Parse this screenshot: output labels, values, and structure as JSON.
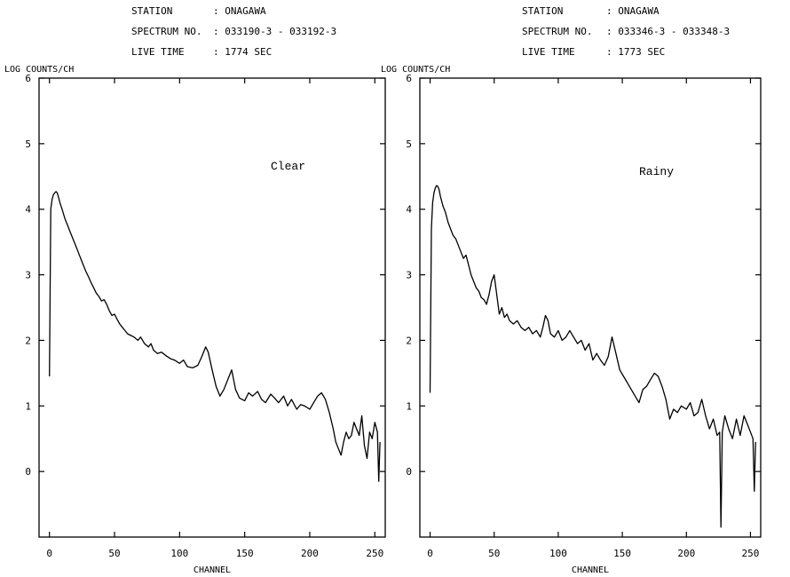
{
  "chart_data": [
    {
      "type": "line",
      "annotation": "Clear",
      "header": {
        "station_label": "STATION",
        "station_value": ": ONAGAWA",
        "spectrum_label": "SPECTRUM NO.",
        "spectrum_value": ": 033190-3 - 033192-3",
        "live_label": "LIVE TIME",
        "live_value": ":  1774 SEC"
      },
      "ylabel": "LOG COUNTS/CH",
      "xlabel": "CHANNEL",
      "xlim": [
        -8,
        258
      ],
      "ylim": [
        -1,
        6
      ],
      "xticks": [
        0,
        50,
        100,
        150,
        200,
        250
      ],
      "yticks": [
        0,
        1,
        2,
        3,
        4,
        5,
        6
      ],
      "series": [
        {
          "x": [
            0,
            1,
            2,
            3,
            4,
            5,
            6,
            7,
            8,
            10,
            12,
            14,
            16,
            18,
            20,
            22,
            24,
            26,
            28,
            30,
            32,
            34,
            36,
            38,
            40,
            42,
            44,
            46,
            48,
            50,
            52,
            54,
            56,
            58,
            60,
            62,
            65,
            68,
            70,
            73,
            76,
            78,
            80,
            83,
            86,
            90,
            93,
            96,
            100,
            103,
            106,
            110,
            114,
            117,
            120,
            122,
            125,
            128,
            131,
            134,
            137,
            140,
            143,
            146,
            150,
            153,
            156,
            160,
            163,
            166,
            170,
            173,
            176,
            180,
            183,
            186,
            190,
            193,
            196,
            200,
            203,
            206,
            209,
            212,
            215,
            218,
            220,
            222,
            224,
            226,
            228,
            230,
            232,
            234,
            236,
            238,
            240,
            242,
            244,
            246,
            248,
            250,
            252,
            253,
            254
          ],
          "y": [
            1.45,
            4.0,
            4.15,
            4.22,
            4.25,
            4.27,
            4.25,
            4.18,
            4.1,
            3.98,
            3.85,
            3.75,
            3.65,
            3.55,
            3.45,
            3.35,
            3.25,
            3.15,
            3.05,
            2.97,
            2.88,
            2.8,
            2.72,
            2.67,
            2.6,
            2.62,
            2.55,
            2.45,
            2.38,
            2.4,
            2.32,
            2.25,
            2.2,
            2.15,
            2.1,
            2.08,
            2.05,
            2.0,
            2.05,
            1.95,
            1.9,
            1.95,
            1.85,
            1.8,
            1.82,
            1.76,
            1.72,
            1.7,
            1.65,
            1.7,
            1.6,
            1.58,
            1.62,
            1.75,
            1.9,
            1.82,
            1.55,
            1.3,
            1.15,
            1.25,
            1.4,
            1.55,
            1.25,
            1.12,
            1.08,
            1.2,
            1.15,
            1.22,
            1.1,
            1.05,
            1.18,
            1.12,
            1.05,
            1.15,
            1.0,
            1.1,
            0.95,
            1.02,
            1.0,
            0.95,
            1.05,
            1.15,
            1.2,
            1.1,
            0.9,
            0.65,
            0.45,
            0.35,
            0.25,
            0.45,
            0.6,
            0.5,
            0.55,
            0.75,
            0.65,
            0.55,
            0.85,
            0.4,
            0.2,
            0.6,
            0.5,
            0.75,
            0.6,
            -0.15,
            0.45
          ]
        }
      ]
    },
    {
      "type": "line",
      "annotation": "Rainy",
      "header": {
        "station_label": "STATION",
        "station_value": ": ONAGAWA",
        "spectrum_label": "SPECTRUM NO.",
        "spectrum_value": ": 033346-3 - 033348-3",
        "live_label": "LIVE TIME",
        "live_value": ":  1773 SEC"
      },
      "ylabel": "LOG COUNTS/CH",
      "xlabel": "CHANNEL",
      "xlim": [
        -8,
        258
      ],
      "ylim": [
        -1,
        6
      ],
      "xticks": [
        0,
        50,
        100,
        150,
        200,
        250
      ],
      "yticks": [
        0,
        1,
        2,
        3,
        4,
        5,
        6
      ],
      "series": [
        {
          "x": [
            0,
            1,
            2,
            3,
            4,
            5,
            6,
            7,
            8,
            10,
            12,
            14,
            16,
            18,
            20,
            22,
            24,
            26,
            28,
            30,
            32,
            34,
            36,
            38,
            40,
            42,
            44,
            46,
            48,
            50,
            52,
            54,
            56,
            58,
            60,
            62,
            65,
            68,
            71,
            74,
            77,
            80,
            83,
            86,
            88,
            90,
            92,
            94,
            97,
            100,
            103,
            106,
            109,
            112,
            115,
            118,
            121,
            124,
            127,
            130,
            133,
            136,
            139,
            142,
            145,
            148,
            151,
            154,
            157,
            160,
            163,
            166,
            169,
            172,
            175,
            178,
            181,
            184,
            187,
            190,
            193,
            196,
            200,
            203,
            206,
            209,
            212,
            215,
            218,
            221,
            224,
            226,
            227,
            228,
            230,
            233,
            236,
            239,
            242,
            245,
            248,
            250,
            252,
            253,
            254
          ],
          "y": [
            1.2,
            3.7,
            4.1,
            4.25,
            4.32,
            4.36,
            4.35,
            4.3,
            4.2,
            4.05,
            3.95,
            3.8,
            3.7,
            3.6,
            3.55,
            3.45,
            3.35,
            3.25,
            3.3,
            3.15,
            3.0,
            2.9,
            2.8,
            2.75,
            2.65,
            2.62,
            2.55,
            2.7,
            2.9,
            3.0,
            2.7,
            2.4,
            2.5,
            2.35,
            2.4,
            2.3,
            2.25,
            2.3,
            2.2,
            2.15,
            2.2,
            2.1,
            2.15,
            2.05,
            2.2,
            2.38,
            2.3,
            2.1,
            2.05,
            2.15,
            2.0,
            2.05,
            2.15,
            2.05,
            1.95,
            2.0,
            1.85,
            1.95,
            1.7,
            1.8,
            1.7,
            1.62,
            1.75,
            2.05,
            1.8,
            1.55,
            1.45,
            1.35,
            1.25,
            1.15,
            1.05,
            1.25,
            1.3,
            1.4,
            1.5,
            1.45,
            1.3,
            1.1,
            0.8,
            0.95,
            0.9,
            1.0,
            0.95,
            1.05,
            0.85,
            0.9,
            1.1,
            0.85,
            0.65,
            0.8,
            0.55,
            0.6,
            -0.85,
            0.6,
            0.85,
            0.65,
            0.5,
            0.8,
            0.55,
            0.85,
            0.7,
            0.6,
            0.5,
            -0.3,
            0.45
          ]
        }
      ]
    }
  ]
}
